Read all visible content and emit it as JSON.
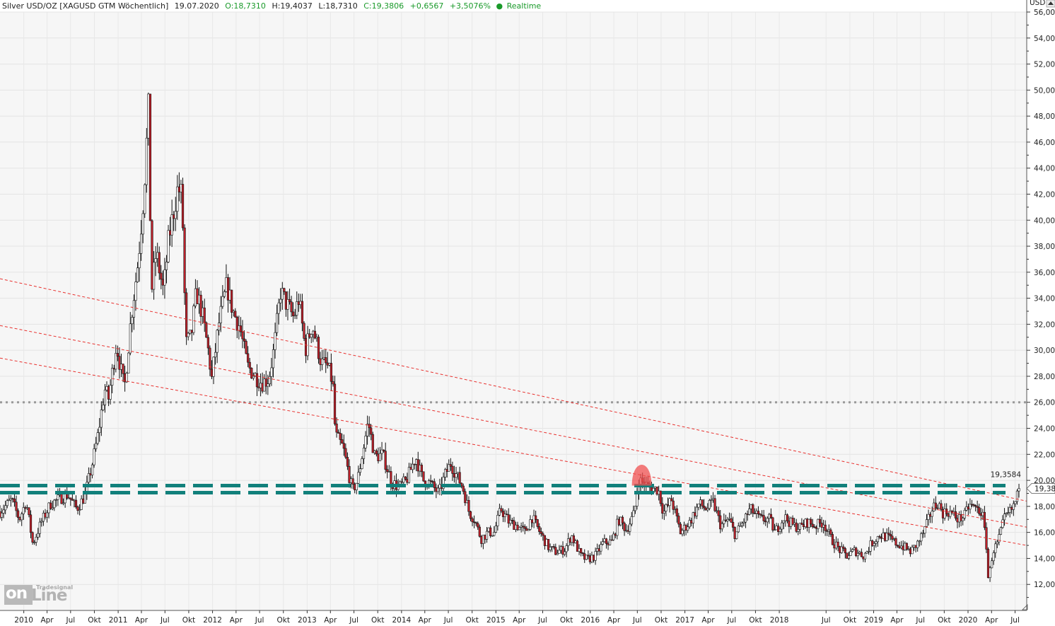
{
  "header": {
    "title": "Silver USD/OZ [XAGUSD GTM Wöchentlich]",
    "date": "19.07.2020",
    "open": "O:18,7310",
    "high": "H:19,4037",
    "low": "L:18,7310",
    "close": "C:19,3806",
    "change": "+0,6567",
    "change_pct": "+3,5076%",
    "realtime": "Realtime"
  },
  "axis": {
    "currency": "USD",
    "last_price_label": "19,380",
    "level_label": "19,3584"
  },
  "logo": {
    "brand": "Tradesignal",
    "word1": "on",
    "word2": "Line"
  },
  "colors": {
    "up": "#ffffff",
    "down": "#c0202a",
    "outline": "#111111",
    "support": "#11807b",
    "trend": "#e8322f",
    "dotted": "#9a9a9a",
    "highlight": "#f05050",
    "header_green": "#1a9a2a",
    "background": "#f6f6f6"
  },
  "chart_data": {
    "type": "candlestick",
    "series_name": "Silver USD/OZ [XAGUSD GTM Wöchentlich]",
    "timeframe": "weekly",
    "y_range": [
      10.0,
      56.0
    ],
    "y_ticks": [
      "12,000",
      "14,000",
      "16,000",
      "18,000",
      "20,000",
      "22,000",
      "24,000",
      "26,000",
      "28,000",
      "30,000",
      "32,000",
      "34,000",
      "36,000",
      "38,000",
      "40,000",
      "42,000",
      "44,000",
      "46,000",
      "48,000",
      "50,000",
      "52,000",
      "54,000",
      "56,000"
    ],
    "x_range": [
      "2009-10-01",
      "2020-08-15"
    ],
    "x_ticks": [
      {
        "date": "2010-01-01",
        "label": "2010"
      },
      {
        "date": "2010-04-01",
        "label": "Apr"
      },
      {
        "date": "2010-07-01",
        "label": "Jul"
      },
      {
        "date": "2010-10-01",
        "label": "Okt"
      },
      {
        "date": "2011-01-01",
        "label": "2011"
      },
      {
        "date": "2011-04-01",
        "label": "Apr"
      },
      {
        "date": "2011-07-01",
        "label": "Jul"
      },
      {
        "date": "2011-10-01",
        "label": "Okt"
      },
      {
        "date": "2012-01-01",
        "label": "2012"
      },
      {
        "date": "2012-04-01",
        "label": "Apr"
      },
      {
        "date": "2012-07-01",
        "label": "Jul"
      },
      {
        "date": "2012-10-01",
        "label": "Okt"
      },
      {
        "date": "2013-01-01",
        "label": "2013"
      },
      {
        "date": "2013-04-01",
        "label": "Apr"
      },
      {
        "date": "2013-07-01",
        "label": "Jul"
      },
      {
        "date": "2013-10-01",
        "label": "Okt"
      },
      {
        "date": "2014-01-01",
        "label": "2014"
      },
      {
        "date": "2014-04-01",
        "label": "Apr"
      },
      {
        "date": "2014-07-01",
        "label": "Jul"
      },
      {
        "date": "2014-10-01",
        "label": "Okt"
      },
      {
        "date": "2015-01-01",
        "label": "2015"
      },
      {
        "date": "2015-04-01",
        "label": "Apr"
      },
      {
        "date": "2015-07-01",
        "label": "Jul"
      },
      {
        "date": "2015-10-01",
        "label": "Okt"
      },
      {
        "date": "2016-01-01",
        "label": "2016"
      },
      {
        "date": "2016-04-01",
        "label": "Apr"
      },
      {
        "date": "2016-07-01",
        "label": "Jul"
      },
      {
        "date": "2016-10-01",
        "label": "Okt"
      },
      {
        "date": "2017-01-01",
        "label": "2017"
      },
      {
        "date": "2017-04-01",
        "label": "Apr"
      },
      {
        "date": "2017-07-01",
        "label": "Jul"
      },
      {
        "date": "2017-10-01",
        "label": "Okt"
      },
      {
        "date": "2018-01-01",
        "label": "2018"
      },
      {
        "date": "2018-07-01",
        "label": "Jul"
      },
      {
        "date": "2018-10-01",
        "label": "Okt"
      },
      {
        "date": "2019-01-01",
        "label": "2019"
      },
      {
        "date": "2019-04-01",
        "label": "Apr"
      },
      {
        "date": "2019-07-01",
        "label": "Jul"
      },
      {
        "date": "2019-10-01",
        "label": "Okt"
      },
      {
        "date": "2020-01-01",
        "label": "2020"
      },
      {
        "date": "2020-04-01",
        "label": "Apr"
      },
      {
        "date": "2020-07-01",
        "label": "Jul"
      }
    ],
    "price_path": [
      [
        "2009-10-01",
        17.6
      ],
      [
        "2009-11-15",
        18.5
      ],
      [
        "2009-12-15",
        17.0
      ],
      [
        "2010-01-10",
        18.4
      ],
      [
        "2010-02-05",
        15.1
      ],
      [
        "2010-03-10",
        16.8
      ],
      [
        "2010-04-15",
        18.2
      ],
      [
        "2010-05-20",
        18.6
      ],
      [
        "2010-06-20",
        18.9
      ],
      [
        "2010-07-25",
        17.8
      ],
      [
        "2010-08-25",
        18.8
      ],
      [
        "2010-09-20",
        21.0
      ],
      [
        "2010-10-15",
        23.5
      ],
      [
        "2010-11-10",
        27.0
      ],
      [
        "2010-11-25",
        26.3
      ],
      [
        "2010-12-25",
        30.5
      ],
      [
        "2011-01-25",
        27.0
      ],
      [
        "2011-02-20",
        32.5
      ],
      [
        "2011-03-20",
        37.0
      ],
      [
        "2011-04-10",
        42.0
      ],
      [
        "2011-04-28",
        48.5
      ],
      [
        "2011-05-10",
        34.5
      ],
      [
        "2011-05-28",
        37.5
      ],
      [
        "2011-06-25",
        34.5
      ],
      [
        "2011-07-15",
        38.5
      ],
      [
        "2011-08-20",
        42.5
      ],
      [
        "2011-09-05",
        41.8
      ],
      [
        "2011-09-20",
        30.5
      ],
      [
        "2011-10-10",
        31.0
      ],
      [
        "2011-10-30",
        34.5
      ],
      [
        "2011-11-20",
        33.0
      ],
      [
        "2011-12-15",
        30.0
      ],
      [
        "2011-12-29",
        27.8
      ],
      [
        "2012-01-25",
        32.0
      ],
      [
        "2012-02-25",
        35.0
      ],
      [
        "2012-03-20",
        33.0
      ],
      [
        "2012-04-15",
        31.8
      ],
      [
        "2012-05-15",
        28.8
      ],
      [
        "2012-06-15",
        28.0
      ],
      [
        "2012-07-10",
        27.5
      ],
      [
        "2012-08-05",
        27.8
      ],
      [
        "2012-08-25",
        30.0
      ],
      [
        "2012-09-20",
        34.5
      ],
      [
        "2012-10-15",
        33.5
      ],
      [
        "2012-11-10",
        32.5
      ],
      [
        "2012-11-30",
        34.0
      ],
      [
        "2012-12-25",
        30.0
      ],
      [
        "2013-01-20",
        32.0
      ],
      [
        "2013-02-25",
        29.0
      ],
      [
        "2013-03-20",
        28.8
      ],
      [
        "2013-04-10",
        27.5
      ],
      [
        "2013-04-20",
        23.5
      ],
      [
        "2013-05-20",
        22.5
      ],
      [
        "2013-06-25",
        19.2
      ],
      [
        "2013-07-15",
        20.0
      ],
      [
        "2013-08-25",
        24.5
      ],
      [
        "2013-09-20",
        21.8
      ],
      [
        "2013-10-20",
        22.0
      ],
      [
        "2013-11-25",
        19.8
      ],
      [
        "2013-12-25",
        19.5
      ],
      [
        "2014-01-20",
        20.0
      ],
      [
        "2014-02-25",
        21.8
      ],
      [
        "2014-03-25",
        20.0
      ],
      [
        "2014-04-20",
        19.8
      ],
      [
        "2014-05-25",
        19.0
      ],
      [
        "2014-06-20",
        20.5
      ],
      [
        "2014-07-10",
        21.3
      ],
      [
        "2014-07-30",
        20.5
      ],
      [
        "2014-08-25",
        19.5
      ],
      [
        "2014-09-20",
        17.5
      ],
      [
        "2014-10-10",
        17.0
      ],
      [
        "2014-11-05",
        15.5
      ],
      [
        "2014-11-30",
        16.0
      ],
      [
        "2014-12-25",
        16.0
      ],
      [
        "2015-01-20",
        17.8
      ],
      [
        "2015-02-20",
        16.8
      ],
      [
        "2015-03-25",
        16.5
      ],
      [
        "2015-04-25",
        16.0
      ],
      [
        "2015-05-20",
        17.2
      ],
      [
        "2015-06-20",
        16.0
      ],
      [
        "2015-07-25",
        14.8
      ],
      [
        "2015-08-20",
        14.5
      ],
      [
        "2015-09-25",
        14.7
      ],
      [
        "2015-10-20",
        15.8
      ],
      [
        "2015-11-25",
        14.2
      ],
      [
        "2015-12-20",
        13.9
      ],
      [
        "2016-01-20",
        14.2
      ],
      [
        "2016-02-20",
        15.2
      ],
      [
        "2016-03-25",
        15.3
      ],
      [
        "2016-04-20",
        17.0
      ],
      [
        "2016-05-20",
        16.2
      ],
      [
        "2016-06-20",
        17.5
      ],
      [
        "2016-07-05",
        20.0
      ],
      [
        "2016-07-25",
        19.8
      ],
      [
        "2016-08-20",
        19.4
      ],
      [
        "2016-09-20",
        19.3
      ],
      [
        "2016-10-10",
        17.5
      ],
      [
        "2016-11-10",
        18.5
      ],
      [
        "2016-12-15",
        16.0
      ],
      [
        "2017-01-20",
        16.8
      ],
      [
        "2017-02-25",
        18.2
      ],
      [
        "2017-03-25",
        17.8
      ],
      [
        "2017-04-20",
        18.3
      ],
      [
        "2017-05-20",
        16.5
      ],
      [
        "2017-06-20",
        17.0
      ],
      [
        "2017-07-15",
        15.8
      ],
      [
        "2017-08-20",
        17.0
      ],
      [
        "2017-09-10",
        17.8
      ],
      [
        "2017-10-20",
        17.0
      ],
      [
        "2017-11-25",
        17.0
      ],
      [
        "2017-12-15",
        16.0
      ],
      [
        "2018-01-20",
        17.2
      ],
      [
        "2018-02-25",
        16.5
      ],
      [
        "2018-03-25",
        16.4
      ],
      [
        "2018-04-20",
        16.8
      ],
      [
        "2018-05-20",
        16.5
      ],
      [
        "2018-06-20",
        16.8
      ],
      [
        "2018-07-20",
        15.5
      ],
      [
        "2018-08-20",
        14.7
      ],
      [
        "2018-09-20",
        14.2
      ],
      [
        "2018-10-20",
        14.6
      ],
      [
        "2018-11-25",
        14.2
      ],
      [
        "2018-12-25",
        15.2
      ],
      [
        "2019-01-25",
        15.8
      ],
      [
        "2019-02-25",
        15.6
      ],
      [
        "2019-03-25",
        15.2
      ],
      [
        "2019-04-25",
        14.9
      ],
      [
        "2019-05-25",
        14.5
      ],
      [
        "2019-06-25",
        15.3
      ],
      [
        "2019-07-20",
        16.3
      ],
      [
        "2019-08-15",
        17.8
      ],
      [
        "2019-09-05",
        18.3
      ],
      [
        "2019-09-25",
        17.5
      ],
      [
        "2019-10-20",
        17.6
      ],
      [
        "2019-11-25",
        17.0
      ],
      [
        "2019-12-20",
        17.3
      ],
      [
        "2020-01-05",
        18.1
      ],
      [
        "2020-02-05",
        17.8
      ],
      [
        "2020-02-25",
        17.5
      ],
      [
        "2020-03-12",
        15.0
      ],
      [
        "2020-03-20",
        12.2
      ],
      [
        "2020-04-05",
        14.5
      ],
      [
        "2020-04-25",
        15.2
      ],
      [
        "2020-05-20",
        17.0
      ],
      [
        "2020-06-20",
        17.8
      ],
      [
        "2020-07-05",
        18.5
      ],
      [
        "2020-07-19",
        19.38
      ]
    ],
    "last_close": 19.3806,
    "support_levels": [
      19.6,
      19.05
    ],
    "support_label_value": 19.3584,
    "dotted_level": 26.0,
    "trend_lines": [
      {
        "p1": [
          "2009-10-01",
          35.5
        ],
        "p2": [
          "2020-08-15",
          18.4
        ]
      },
      {
        "p1": [
          "2009-10-01",
          31.9
        ],
        "p2": [
          "2020-08-15",
          16.4
        ]
      },
      {
        "p1": [
          "2009-10-01",
          29.4
        ],
        "p2": [
          "2020-08-15",
          15.0
        ]
      }
    ],
    "highlight": {
      "from": "2016-06-10",
      "to": "2016-08-25",
      "base": 19.6,
      "top": 21.3
    }
  }
}
